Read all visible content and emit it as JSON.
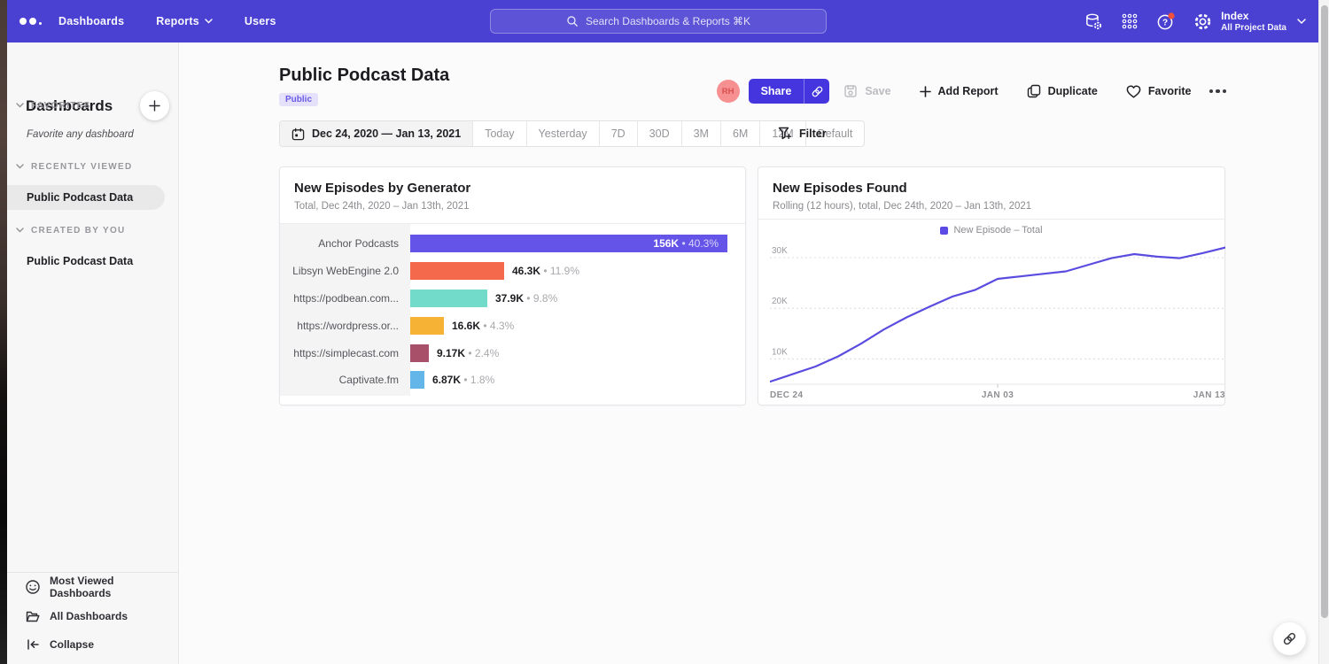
{
  "nav": {
    "items": [
      "Dashboards",
      "Reports",
      "Users"
    ],
    "search_placeholder": "Search Dashboards & Reports ⌘K",
    "workspace": {
      "name": "Index",
      "subtitle": "All Project Data"
    }
  },
  "sidebar": {
    "title": "Dashboards",
    "sections": [
      {
        "label": "FAVORITES",
        "empty_text": "Favorite any dashboard"
      },
      {
        "label": "RECENTLY VIEWED",
        "items": [
          {
            "label": "Public Podcast Data",
            "active": true
          }
        ]
      },
      {
        "label": "CREATED BY YOU",
        "items": [
          {
            "label": "Public Podcast Data",
            "active": false
          }
        ]
      }
    ],
    "footer": [
      {
        "label": "Most Viewed Dashboards"
      },
      {
        "label": "All Dashboards"
      },
      {
        "label": "Collapse"
      }
    ]
  },
  "header": {
    "title": "Public Podcast Data",
    "badge": "Public",
    "avatar_initials": "RH",
    "actions": {
      "share": "Share",
      "save": "Save",
      "add_report": "Add Report",
      "duplicate": "Duplicate",
      "favorite": "Favorite"
    }
  },
  "datebar": {
    "range": "Dec 24, 2020 — Jan 13, 2021",
    "presets": [
      "Today",
      "Yesterday",
      "7D",
      "30D",
      "3M",
      "6M",
      "12M",
      "Default"
    ],
    "filter_label": "Filter"
  },
  "colors": {
    "navbar": "#4A40D2",
    "accent": "#4435DF",
    "line": "#5B4CE0",
    "avatar_bg": "#F79090",
    "avatar_text": "#D84F4F"
  },
  "chart_data": [
    {
      "type": "bar",
      "orientation": "horizontal",
      "title": "New Episodes by Generator",
      "subtitle": "Total, Dec 24th, 2020 – Jan 13th, 2021",
      "categories": [
        "Anchor Podcasts",
        "Libsyn WebEngine 2.0",
        "https://podbean.com...",
        "https://wordpress.or...",
        "https://simplecast.com",
        "Captivate.fm"
      ],
      "values": [
        156000,
        46300,
        37900,
        16600,
        9170,
        6870
      ],
      "value_labels": [
        "156K",
        "46.3K",
        "37.9K",
        "16.6K",
        "9.17K",
        "6.87K"
      ],
      "pct_labels": [
        "40.3%",
        "11.9%",
        "9.8%",
        "4.3%",
        "2.4%",
        "1.8%"
      ],
      "colors": [
        "#6554E8",
        "#F4694B",
        "#72DBC9",
        "#F5B234",
        "#A85069",
        "#64B5E8"
      ],
      "xmax": 156000
    },
    {
      "type": "line",
      "title": "New Episodes Found",
      "subtitle": "Rolling (12 hours), total, Dec 24th, 2020 – Jan 13th, 2021",
      "legend": [
        "New Episode – Total"
      ],
      "line_color": "#5B4CE0",
      "x_ticks": [
        "DEC 24",
        "JAN 03",
        "JAN 13"
      ],
      "x_tick_positions": [
        0,
        0.5,
        1
      ],
      "y_ticks": [
        "10K",
        "20K",
        "30K"
      ],
      "y_tick_values": [
        10000,
        20000,
        30000
      ],
      "ylim": [
        5000,
        33500
      ],
      "grid": true,
      "legend_position": "top-center",
      "values": [
        5500,
        7000,
        8500,
        10500,
        13000,
        15800,
        18200,
        20300,
        22300,
        23600,
        25800,
        26300,
        26800,
        27300,
        28600,
        29900,
        30700,
        30200,
        29900,
        30900,
        32000
      ]
    }
  ]
}
